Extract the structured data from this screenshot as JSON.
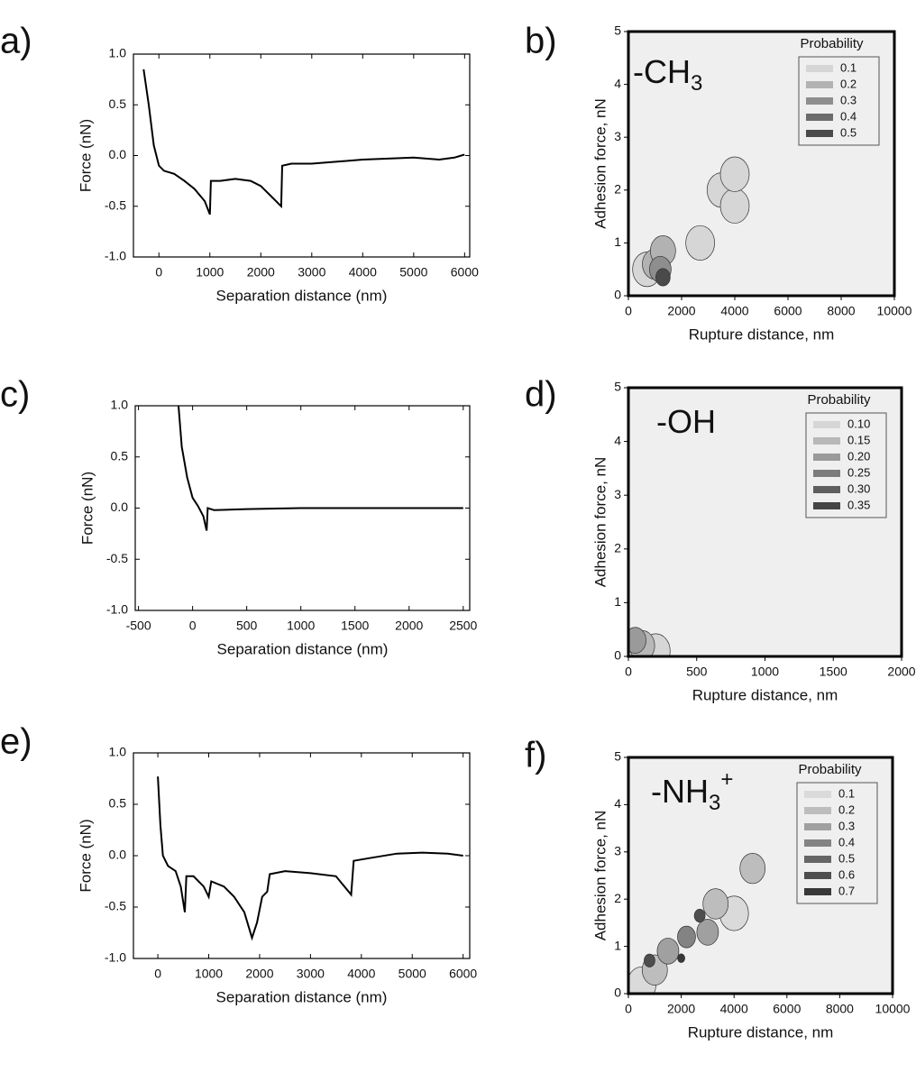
{
  "chart_data": [
    {
      "type": "line",
      "panel_label": "a)",
      "xlabel": "Separation distance (nm)",
      "ylabel": "Force (nN)",
      "color": "#000000",
      "x": [
        -300,
        -200,
        -100,
        0,
        100,
        300,
        500,
        700,
        900,
        1000,
        1020,
        1200,
        1500,
        1800,
        2000,
        2200,
        2400,
        2420,
        2600,
        3000,
        3500,
        4000,
        4500,
        5000,
        5500,
        5800,
        6000
      ],
      "values": [
        0.85,
        0.5,
        0.1,
        -0.1,
        -0.15,
        -0.18,
        -0.25,
        -0.33,
        -0.45,
        -0.58,
        -0.25,
        -0.25,
        -0.23,
        -0.25,
        -0.3,
        -0.4,
        -0.5,
        -0.1,
        -0.08,
        -0.08,
        -0.06,
        -0.04,
        -0.03,
        -0.02,
        -0.04,
        -0.02,
        0.01
      ],
      "xlim": [
        -500,
        6100
      ],
      "xticks": [
        0,
        1000,
        2000,
        3000,
        4000,
        5000,
        6000
      ],
      "ylim": [
        -1,
        1
      ],
      "yticks": [
        {
          "value": -1,
          "label": "-1.0"
        },
        {
          "value": -0.5,
          "label": "-0.5"
        },
        {
          "value": 0,
          "label": "0.0"
        },
        {
          "value": 0.5,
          "label": "0.5"
        },
        {
          "value": 1,
          "label": "1.0"
        }
      ]
    },
    {
      "type": "contour",
      "panel_label": "b)",
      "xlabel": "Rupture distance, nm",
      "ylabel": "Adhesion force, nN",
      "annotation": "-CH",
      "annotation_sub": "3",
      "legend_title": "Probability",
      "levels": [
        0.1,
        0.2,
        0.3,
        0.4,
        0.5
      ],
      "level_colors": [
        "#d6d6d6",
        "#b2b2b2",
        "#8e8e8e",
        "#6c6c6c",
        "#4a4a4a"
      ],
      "x": [
        700,
        2700,
        3500,
        4000,
        4000,
        1000,
        1300,
        1200,
        1300
      ],
      "y": [
        0.5,
        1.0,
        2.0,
        1.7,
        2.3,
        0.6,
        0.85,
        0.5,
        0.35
      ],
      "values": [
        0.1,
        0.1,
        0.1,
        0.1,
        0.1,
        0.2,
        0.2,
        0.3,
        0.5
      ],
      "xlim": [
        0,
        10000
      ],
      "xticks": [
        0,
        2000,
        4000,
        6000,
        8000,
        10000
      ],
      "ylim": [
        0,
        5
      ],
      "yticks": [
        0,
        1,
        2,
        3,
        4,
        5
      ]
    },
    {
      "type": "line",
      "panel_label": "c)",
      "xlabel": "Separation distance (nm)",
      "ylabel": "Force (nN)",
      "color": "#000000",
      "x": [
        -130,
        -100,
        -50,
        0,
        50,
        100,
        130,
        140,
        200,
        500,
        1000,
        1500,
        2000,
        2500
      ],
      "values": [
        1.0,
        0.6,
        0.3,
        0.1,
        0.02,
        -0.08,
        -0.22,
        0.0,
        -0.02,
        -0.01,
        0.0,
        0.0,
        0.0,
        0.0
      ],
      "xlim": [
        -530,
        2560
      ],
      "xticks": [
        -500,
        0,
        500,
        1000,
        1500,
        2000,
        2500
      ],
      "ylim": [
        -1,
        1
      ],
      "yticks": [
        {
          "value": -1,
          "label": "-1.0"
        },
        {
          "value": -0.5,
          "label": "-0.5"
        },
        {
          "value": 0,
          "label": "0.0"
        },
        {
          "value": 0.5,
          "label": "0.5"
        },
        {
          "value": 1,
          "label": "1.0"
        }
      ]
    },
    {
      "type": "contour",
      "panel_label": "d)",
      "xlabel": "Rupture distance, nm",
      "ylabel": "Adhesion force, nN",
      "annotation": "-OH",
      "legend_title": "Probability",
      "levels": [
        {
          "value": 0.1,
          "label": "0.10"
        },
        0.15,
        {
          "value": 0.2,
          "label": "0.20"
        },
        0.25,
        {
          "value": 0.3,
          "label": "0.30"
        },
        0.35
      ],
      "level_colors": [
        "#d6d6d6",
        "#b8b8b8",
        "#9a9a9a",
        "#7c7c7c",
        "#5e5e5e",
        "#444444"
      ],
      "x": [
        0,
        200,
        100,
        50
      ],
      "y": [
        0.1,
        0.1,
        0.2,
        0.3
      ],
      "values": [
        0.1,
        0.1,
        0.15,
        0.2
      ],
      "xlim": [
        0,
        2000
      ],
      "xticks": [
        0,
        500,
        1000,
        1500,
        2000
      ],
      "ylim": [
        0,
        5
      ],
      "yticks": [
        0,
        1,
        2,
        3,
        4,
        5
      ]
    },
    {
      "type": "line",
      "panel_label": "e)",
      "xlabel": "Separation distance (nm)",
      "ylabel": "Force (nN)",
      "color": "#000000",
      "x": [
        0,
        50,
        100,
        200,
        350,
        450,
        530,
        560,
        700,
        900,
        1000,
        1050,
        1300,
        1500,
        1700,
        1850,
        1950,
        2050,
        2150,
        2200,
        2500,
        3000,
        3500,
        3800,
        3850,
        4200,
        4700,
        5200,
        5700,
        6000
      ],
      "values": [
        0.77,
        0.3,
        0,
        -0.1,
        -0.15,
        -0.3,
        -0.55,
        -0.2,
        -0.2,
        -0.3,
        -0.4,
        -0.25,
        -0.3,
        -0.4,
        -0.55,
        -0.8,
        -0.65,
        -0.4,
        -0.35,
        -0.18,
        -0.15,
        -0.17,
        -0.2,
        -0.38,
        -0.05,
        -0.02,
        0.02,
        0.03,
        0.02,
        0.0
      ],
      "xlim": [
        -480,
        6130
      ],
      "xticks": [
        0,
        1000,
        2000,
        3000,
        4000,
        5000,
        6000
      ],
      "ylim": [
        -1,
        1
      ],
      "yticks": [
        {
          "value": -1,
          "label": "-1.0"
        },
        {
          "value": -0.5,
          "label": "-0.5"
        },
        {
          "value": 0,
          "label": "0.0"
        },
        {
          "value": 0.5,
          "label": "0.5"
        },
        {
          "value": 1,
          "label": "1.0"
        }
      ]
    },
    {
      "type": "contour",
      "panel_label": "f)",
      "xlabel": "Rupture distance, nm",
      "ylabel": "Adhesion force, nN",
      "annotation": "-NH",
      "annotation_sub": "3",
      "annotation_sup": "+",
      "legend_title": "Probability",
      "levels": [
        0.1,
        0.2,
        0.3,
        0.4,
        0.5,
        0.6,
        0.7
      ],
      "level_colors": [
        "#dadada",
        "#bdbdbd",
        "#a0a0a0",
        "#838383",
        "#666666",
        "#4e4e4e",
        "#383838"
      ],
      "x": [
        500,
        4000,
        3300,
        4700,
        1000,
        1500,
        3000,
        2200,
        800,
        2700,
        2000
      ],
      "y": [
        0.2,
        1.7,
        1.9,
        2.65,
        0.5,
        0.9,
        1.3,
        1.2,
        0.7,
        1.65,
        0.75
      ],
      "values": [
        0.1,
        0.1,
        0.2,
        0.2,
        0.2,
        0.3,
        0.3,
        0.4,
        0.6,
        0.6,
        0.7
      ],
      "xlim": [
        0,
        10000
      ],
      "xticks": [
        0,
        2000,
        4000,
        6000,
        8000,
        10000
      ],
      "ylim": [
        0,
        5
      ],
      "yticks": [
        0,
        1,
        2,
        3,
        4,
        5
      ]
    }
  ]
}
